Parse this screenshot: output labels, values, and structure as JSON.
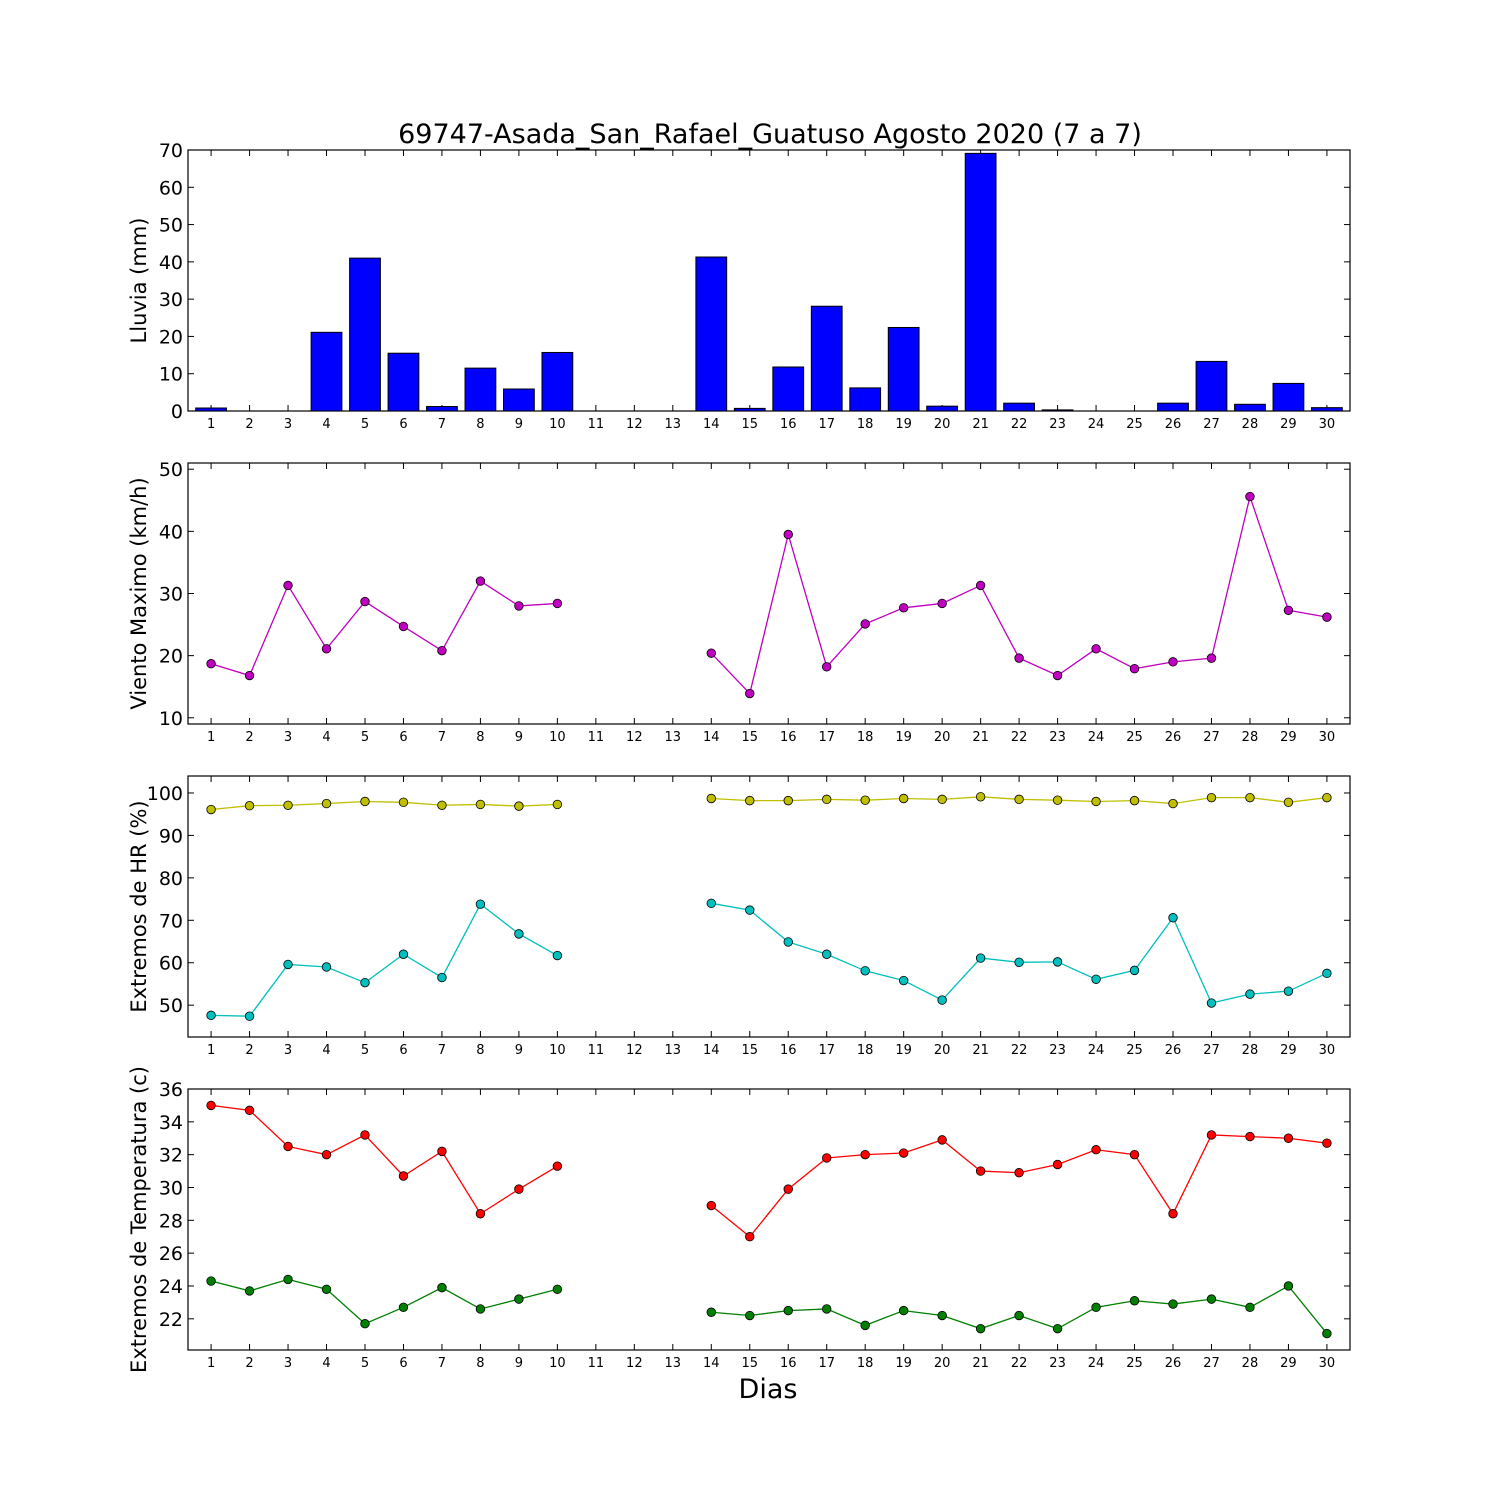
{
  "title": "69747-Asada_San_Rafael_Guatuso Agosto 2020  (7 a 7)",
  "xlabel": "Dias",
  "days": [
    1,
    2,
    3,
    4,
    5,
    6,
    7,
    8,
    9,
    10,
    11,
    12,
    13,
    14,
    15,
    16,
    17,
    18,
    19,
    20,
    21,
    22,
    23,
    24,
    25,
    26,
    27,
    28,
    29,
    30
  ],
  "chart_data": [
    {
      "id": "lluvia",
      "type": "bar",
      "ylabel": "Lluvia (mm)",
      "ylim": [
        0,
        70
      ],
      "yticks": [
        0,
        10,
        20,
        30,
        40,
        50,
        60,
        70
      ],
      "series": [
        {
          "color": "#0000ff",
          "values": [
            0.8,
            0,
            0,
            21.1,
            41.0,
            15.5,
            1.2,
            11.5,
            5.9,
            15.7,
            null,
            null,
            null,
            41.3,
            0.7,
            11.8,
            28.1,
            6.2,
            22.4,
            1.3,
            69.1,
            2.1,
            0.3,
            0,
            0,
            2.1,
            13.3,
            1.8,
            7.4,
            0.9
          ]
        }
      ]
    },
    {
      "id": "viento",
      "type": "line",
      "ylabel": "Viento Maximo (km/h)",
      "ylim": [
        9,
        51
      ],
      "yticks": [
        10,
        20,
        30,
        40,
        50
      ],
      "series": [
        {
          "color": "#bf00bf",
          "values": [
            18.7,
            16.8,
            31.3,
            21.1,
            28.7,
            24.7,
            20.8,
            32.0,
            28.0,
            28.4,
            null,
            null,
            null,
            20.4,
            13.9,
            39.5,
            18.2,
            25.1,
            27.7,
            28.4,
            31.3,
            19.6,
            16.8,
            21.1,
            17.9,
            19.0,
            19.6,
            45.6,
            27.3,
            26.2
          ]
        }
      ]
    },
    {
      "id": "hr",
      "type": "line",
      "ylabel": "Extremos de HR (%)",
      "ylim": [
        42.5,
        104
      ],
      "yticks": [
        50,
        60,
        70,
        80,
        90,
        100
      ],
      "series": [
        {
          "color": "#bfbf00",
          "values": [
            96.1,
            97.0,
            97.1,
            97.5,
            98.0,
            97.8,
            97.1,
            97.3,
            96.9,
            97.3,
            null,
            null,
            null,
            98.7,
            98.2,
            98.2,
            98.5,
            98.3,
            98.7,
            98.5,
            99.1,
            98.5,
            98.3,
            98.0,
            98.2,
            97.5,
            98.9,
            98.9,
            97.8,
            98.9
          ]
        },
        {
          "color": "#00bfbf",
          "values": [
            47.6,
            47.4,
            59.6,
            59.0,
            55.3,
            62.0,
            56.5,
            73.8,
            66.8,
            61.7,
            null,
            null,
            null,
            74.0,
            72.4,
            64.9,
            62.0,
            58.1,
            55.8,
            51.2,
            61.1,
            60.1,
            60.2,
            56.1,
            58.2,
            70.6,
            50.5,
            52.6,
            53.3,
            57.5
          ]
        }
      ]
    },
    {
      "id": "temp",
      "type": "line",
      "ylabel": "Extremos de Temperatura (c)",
      "ylim": [
        20.1,
        36
      ],
      "yticks": [
        22,
        24,
        26,
        28,
        30,
        32,
        34,
        36
      ],
      "series": [
        {
          "color": "#ff0000",
          "values": [
            35.0,
            34.7,
            32.5,
            32.0,
            33.2,
            30.7,
            32.2,
            28.4,
            29.9,
            31.3,
            null,
            null,
            null,
            28.9,
            27.0,
            29.9,
            31.8,
            32.0,
            32.1,
            32.9,
            31.0,
            30.9,
            31.4,
            32.3,
            32.0,
            28.4,
            33.2,
            33.1,
            33.0,
            32.7
          ]
        },
        {
          "color": "#008000",
          "values": [
            24.3,
            23.7,
            24.4,
            23.8,
            21.7,
            22.7,
            23.9,
            22.6,
            23.2,
            23.8,
            null,
            null,
            null,
            22.4,
            22.2,
            22.5,
            22.6,
            21.6,
            22.5,
            22.2,
            21.4,
            22.2,
            21.4,
            22.7,
            23.1,
            22.9,
            23.2,
            22.7,
            24.0,
            21.1
          ]
        }
      ]
    }
  ]
}
